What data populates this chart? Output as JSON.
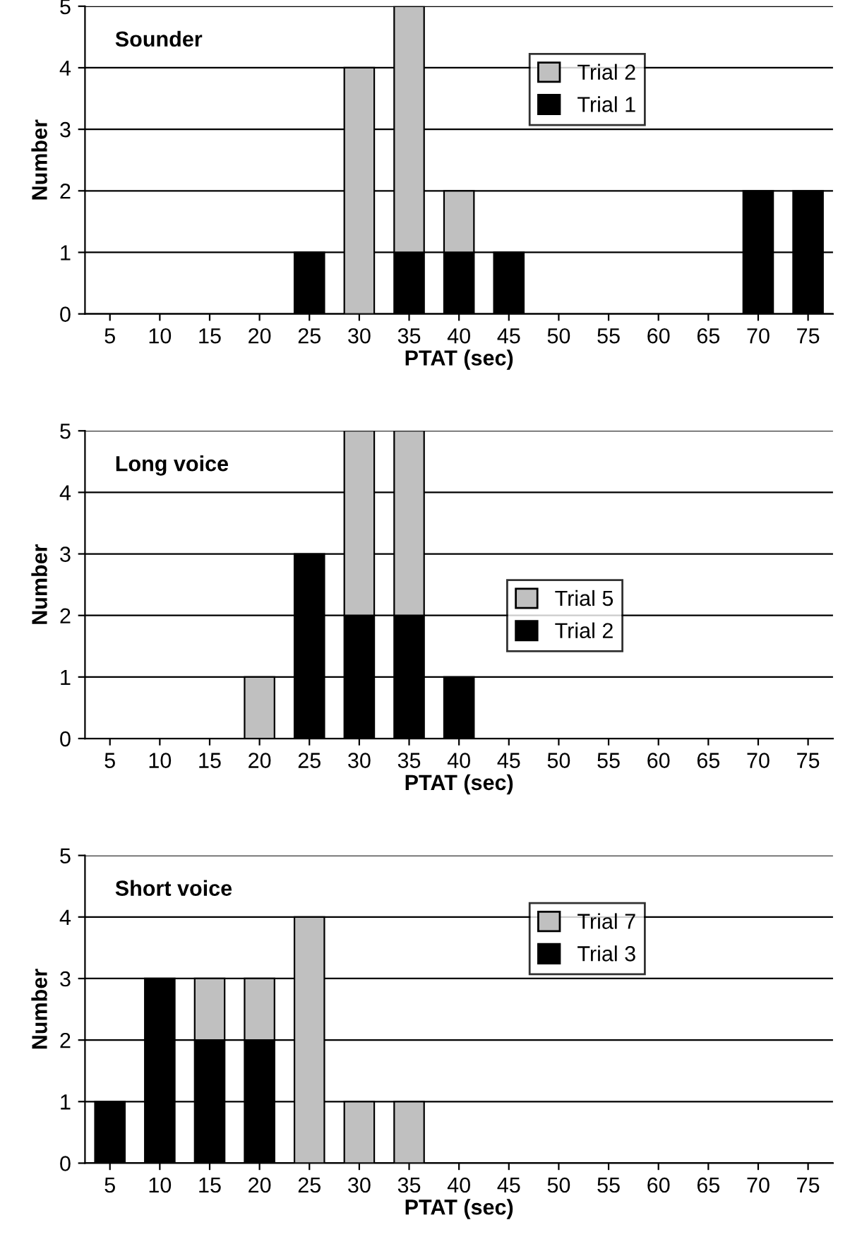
{
  "chart_data": [
    {
      "type": "bar",
      "title": "Sounder",
      "xlabel": "PTAT (sec)",
      "ylabel": "Number",
      "stacked": true,
      "grid": "y",
      "legend": "top right",
      "ylim": [
        0,
        5
      ],
      "yticks": [
        0,
        1,
        2,
        3,
        4,
        5
      ],
      "categories": [
        "5",
        "10",
        "15",
        "20",
        "25",
        "30",
        "35",
        "40",
        "45",
        "50",
        "55",
        "60",
        "65",
        "70",
        "75"
      ],
      "series": [
        {
          "name": "Trial 1",
          "color": "#000000",
          "values": [
            0,
            0,
            0,
            0,
            1,
            0,
            1,
            1,
            1,
            0,
            0,
            0,
            0,
            2,
            2
          ]
        },
        {
          "name": "Trial 2",
          "color": "#c0c0c0",
          "values": [
            0,
            0,
            0,
            0,
            0,
            4,
            4,
            1,
            0,
            0,
            0,
            0,
            0,
            0,
            0
          ]
        }
      ]
    },
    {
      "type": "bar",
      "title": "Long voice",
      "xlabel": "PTAT (sec)",
      "ylabel": "Number",
      "stacked": true,
      "grid": "y",
      "legend": "right",
      "ylim": [
        0,
        5
      ],
      "yticks": [
        0,
        1,
        2,
        3,
        4,
        5
      ],
      "categories": [
        "5",
        "10",
        "15",
        "20",
        "25",
        "30",
        "35",
        "40",
        "45",
        "50",
        "55",
        "60",
        "65",
        "70",
        "75"
      ],
      "series": [
        {
          "name": "Trial 2",
          "color": "#000000",
          "values": [
            0,
            0,
            0,
            0,
            3,
            2,
            2,
            1,
            0,
            0,
            0,
            0,
            0,
            0,
            0
          ]
        },
        {
          "name": "Trial 5",
          "color": "#c0c0c0",
          "values": [
            0,
            0,
            0,
            1,
            0,
            3,
            3,
            0,
            0,
            0,
            0,
            0,
            0,
            0,
            0
          ]
        }
      ]
    },
    {
      "type": "bar",
      "title": "Short voice",
      "xlabel": "PTAT (sec)",
      "ylabel": "Number",
      "stacked": true,
      "grid": "y",
      "legend": "top right",
      "ylim": [
        0,
        5
      ],
      "yticks": [
        0,
        1,
        2,
        3,
        4,
        5
      ],
      "categories": [
        "5",
        "10",
        "15",
        "20",
        "25",
        "30",
        "35",
        "40",
        "45",
        "50",
        "55",
        "60",
        "65",
        "70",
        "75"
      ],
      "series": [
        {
          "name": "Trial 3",
          "color": "#000000",
          "values": [
            1,
            3,
            2,
            2,
            0,
            0,
            0,
            0,
            0,
            0,
            0,
            0,
            0,
            0,
            0
          ]
        },
        {
          "name": "Trial 7",
          "color": "#c0c0c0",
          "values": [
            0,
            0,
            1,
            1,
            4,
            1,
            1,
            0,
            0,
            0,
            0,
            0,
            0,
            0,
            0
          ]
        }
      ]
    }
  ]
}
